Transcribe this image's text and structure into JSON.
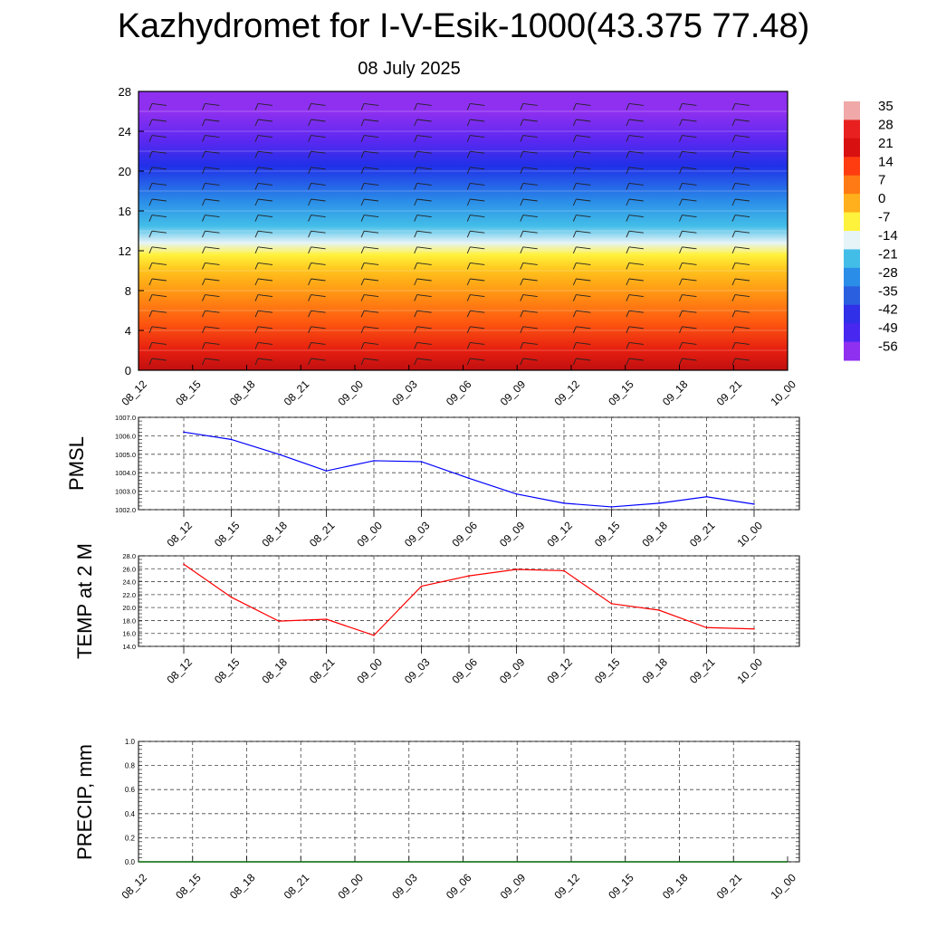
{
  "title": "Kazhydromet for I-V-Esik-1000(43.375 77.48)",
  "subtitle": "08 July 2025",
  "chart_data": [
    {
      "type": "heatmap",
      "name": "temperature-profile",
      "xlabel": "",
      "ylabel": "",
      "x_ticks": [
        "08_12",
        "08_15",
        "08_18",
        "08_21",
        "09_00",
        "09_03",
        "09_06",
        "09_09",
        "09_12",
        "09_15",
        "09_18",
        "09_21",
        "10_00"
      ],
      "y_ticks": [
        "0",
        "4",
        "8",
        "12",
        "16",
        "20",
        "24",
        "28"
      ],
      "ylim": [
        0,
        28
      ],
      "colorbar_labels": [
        "35",
        "28",
        "21",
        "14",
        "7",
        "0",
        "-7",
        "-14",
        "-21",
        "-28",
        "-35",
        "-42",
        "-49",
        "-56"
      ],
      "colorbar_range": [
        -56,
        35
      ],
      "levels": [
        0,
        2,
        4,
        6,
        8,
        10,
        12,
        13,
        16,
        20,
        22,
        24,
        28
      ],
      "level_values": [
        32,
        25,
        20,
        12,
        5,
        0,
        -10,
        -18,
        -28,
        -42,
        -52,
        -58,
        -60
      ],
      "colors": [
        "#8f30f0",
        "#5a28f0",
        "#2030e8",
        "#2a8de8",
        "#42bde8",
        "#e6f4f8",
        "#fff23c",
        "#ffc21c",
        "#ff9a14",
        "#ff5c10",
        "#e61e10",
        "#c00f10"
      ],
      "wind_barbs": "present"
    },
    {
      "type": "line",
      "name": "pmsl",
      "ylabel": "PMSL",
      "x": [
        "08_12",
        "08_15",
        "08_18",
        "08_21",
        "09_00",
        "09_03",
        "09_06",
        "09_09",
        "09_12",
        "09_15",
        "09_18",
        "09_21",
        "10_00"
      ],
      "series": [
        {
          "values": [
            1006.2,
            1005.8,
            1005.0,
            1004.1,
            1004.65,
            1004.6,
            1003.7,
            1002.85,
            1002.35,
            1002.15,
            1002.35,
            1002.7,
            1002.3
          ],
          "color": "#0000ff"
        }
      ],
      "ylim": [
        1002.0,
        1007.0
      ],
      "y_ticks": [
        "1002.0",
        "1003.0",
        "1004.0",
        "1005.0",
        "1006.0",
        "1007.0"
      ],
      "grid": true
    },
    {
      "type": "line",
      "name": "temp2m",
      "ylabel": "TEMP at 2 M",
      "x": [
        "08_12",
        "08_15",
        "08_18",
        "08_21",
        "09_00",
        "09_03",
        "09_06",
        "09_09",
        "09_12",
        "09_15",
        "09_18",
        "09_21",
        "10_00"
      ],
      "series": [
        {
          "values": [
            26.7,
            21.6,
            17.9,
            18.2,
            15.7,
            23.3,
            24.9,
            25.9,
            25.7,
            20.6,
            19.6,
            16.9,
            16.7
          ],
          "color": "#ff0000"
        }
      ],
      "ylim": [
        14.0,
        28.0
      ],
      "y_ticks": [
        "14.0",
        "16.0",
        "18.0",
        "20.0",
        "22.0",
        "24.0",
        "26.0",
        "28.0"
      ],
      "grid": true
    },
    {
      "type": "line",
      "name": "precip",
      "ylabel": "PRECIP, mm",
      "x": [
        "08_12",
        "08_15",
        "08_18",
        "08_21",
        "09_00",
        "09_03",
        "09_06",
        "09_09",
        "09_12",
        "09_15",
        "09_18",
        "09_21",
        "10_00"
      ],
      "series": [
        {
          "values": [
            0,
            0,
            0,
            0,
            0,
            0,
            0,
            0,
            0,
            0,
            0,
            0,
            0
          ],
          "color": "#006400"
        }
      ],
      "ylim": [
        0.0,
        1.0
      ],
      "y_ticks": [
        "0.0",
        "0.2",
        "0.4",
        "0.6",
        "0.8",
        "1.0"
      ],
      "grid": true
    }
  ]
}
